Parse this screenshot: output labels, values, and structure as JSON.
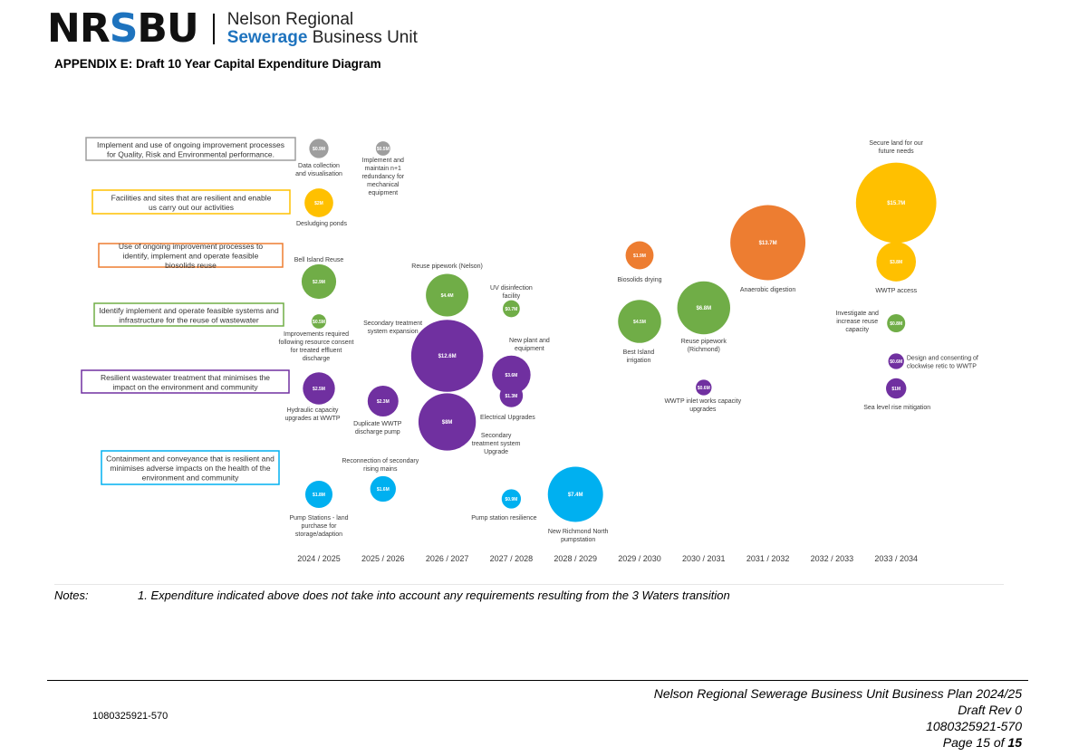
{
  "header": {
    "logo_mark": "NRSBU",
    "logo_line1": "Nelson Regional",
    "logo_line2a": "Sewerage",
    "logo_line2b": "Business Unit",
    "appendix_title": "APPENDIX E: Draft 10 Year Capital Expenditure Diagram"
  },
  "colors": {
    "grey": "#9e9e9e",
    "yellow": "#ffc000",
    "orange": "#ed7d31",
    "green": "#70ad47",
    "purple": "#7030a0",
    "blue": "#00b0f0"
  },
  "chart_data": {
    "type": "scatter",
    "x": [
      "2024 / 2025",
      "2025 / 2026",
      "2026 / 2027",
      "2027 / 2028",
      "2028 / 2029",
      "2029 / 2030",
      "2030 / 2031",
      "2031 / 2032",
      "2032 / 2033",
      "2033 / 2034"
    ],
    "grid": false,
    "legend": "left",
    "categories": [
      {
        "label": "Implement and use of ongoing improvement processes for Quality, Risk and Environmental performance.",
        "color": "grey"
      },
      {
        "label": "Facilities and sites that are resilient and enable us carry out our activities",
        "color": "yellow"
      },
      {
        "label": "Use of ongoing improvement processes to identify, implement and operate feasible biosolids reuse",
        "color": "orange"
      },
      {
        "label": "Identify implement and operate feasible systems and infrastructure for the reuse of wastewater",
        "color": "green"
      },
      {
        "label": "Resilient wastewater treatment that minimises the impact on the environment and community",
        "color": "purple"
      },
      {
        "label": "Containment and conveyance that is resilient and minimises adverse impacts on the health of the environment and community",
        "color": "blue"
      }
    ],
    "bubbles": [
      {
        "year": "2024 / 2025",
        "category": "grey",
        "value": 0.9,
        "amount": "$0.9M",
        "label": "Data collection and visualisation"
      },
      {
        "year": "2025 / 2026",
        "category": "grey",
        "value": 0.5,
        "amount": "$0.5M",
        "label": "Implement and maintain n+1 redundancy for mechanical equipment"
      },
      {
        "year": "2024 / 2025",
        "category": "yellow",
        "value": 2,
        "amount": "$2M",
        "label": "Desludging ponds"
      },
      {
        "year": "2033 / 2034",
        "category": "yellow",
        "value": 15.7,
        "amount": "$15.7M",
        "label": "Secure land for our future needs"
      },
      {
        "year": "2033 / 2034",
        "category": "yellow",
        "value": 3.8,
        "amount": "$3.8M",
        "label": "WWTP access"
      },
      {
        "year": "2029 / 2030",
        "category": "orange",
        "value": 1.9,
        "amount": "$1.9M",
        "label": "Biosolids drying"
      },
      {
        "year": "2031 / 2032",
        "category": "orange",
        "value": 13.7,
        "amount": "$13.7M",
        "label": "Anaerobic digestion"
      },
      {
        "year": "2024 / 2025",
        "category": "green",
        "value": 2.9,
        "amount": "$2.9M",
        "label": "Bell Island Reuse"
      },
      {
        "year": "2024 / 2025",
        "category": "green",
        "value": 0.5,
        "amount": "$0.5M",
        "label": "Improvements required following resource consent for treated effluent discharge"
      },
      {
        "year": "2026 / 2027",
        "category": "green",
        "value": 4.4,
        "amount": "$4.4M",
        "label": "Reuse pipework (Nelson)"
      },
      {
        "year": "2027 / 2028",
        "category": "green",
        "value": 0.7,
        "amount": "$0.7M",
        "label": "UV disinfection facility"
      },
      {
        "year": "2029 / 2030",
        "category": "green",
        "value": 4.5,
        "amount": "$4.5M",
        "label": "Best Island irrigation"
      },
      {
        "year": "2030 / 2031",
        "category": "green",
        "value": 6.8,
        "amount": "$6.8M",
        "label": "Reuse pipework (Richmond)"
      },
      {
        "year": "2033 / 2034",
        "category": "green",
        "value": 0.8,
        "amount": "$0.8M",
        "label": "Investigate and increase reuse capacity"
      },
      {
        "year": "2024 / 2025",
        "category": "purple",
        "value": 2.5,
        "amount": "$2.5M",
        "label": "Hydraulic capacity upgrades at WWTP"
      },
      {
        "year": "2025 / 2026",
        "category": "purple",
        "value": 2.3,
        "amount": "$2.3M",
        "label": "Duplicate WWTP discharge pump"
      },
      {
        "year": "2026 / 2027",
        "category": "purple",
        "value": 12.6,
        "amount": "$12.6M",
        "label": "Secondary treatment system expansion"
      },
      {
        "year": "2026 / 2027",
        "category": "purple",
        "value": 8,
        "amount": "$8M",
        "label": "Secondary treatment system Upgrade"
      },
      {
        "year": "2027 / 2028",
        "category": "purple",
        "value": 3.6,
        "amount": "$3.6M",
        "label": "New plant and equipment"
      },
      {
        "year": "2027 / 2028",
        "category": "purple",
        "value": 1.3,
        "amount": "$1.3M",
        "label": "Electrical Upgrades"
      },
      {
        "year": "2030 / 2031",
        "category": "purple",
        "value": 0.6,
        "amount": "$0.6M",
        "label": "WWTP inlet works capacity upgrades"
      },
      {
        "year": "2033 / 2034",
        "category": "purple",
        "value": 0.6,
        "amount": "$0.6M",
        "label": "Design and consenting of clockwise retic to WWTP"
      },
      {
        "year": "2033 / 2034",
        "category": "purple",
        "value": 1,
        "amount": "$1M",
        "label": "Sea level rise mitigation"
      },
      {
        "year": "2024 / 2025",
        "category": "blue",
        "value": 1.8,
        "amount": "$1.8M",
        "label": "Pump Stations - land purchase for storage/adaption"
      },
      {
        "year": "2025 / 2026",
        "category": "blue",
        "value": 1.6,
        "amount": "$1.6M",
        "label": "Reconnection of secondary rising mains"
      },
      {
        "year": "2027 / 2028",
        "category": "blue",
        "value": 0.9,
        "amount": "$0.9M",
        "label": "Pump station resilience"
      },
      {
        "year": "2028 / 2029",
        "category": "blue",
        "value": 7.4,
        "amount": "$7.4M",
        "label": "New Richmond North pumpstation"
      }
    ]
  },
  "notes": {
    "label": "Notes:",
    "text": "1. Expenditure indicated above does not take into account any requirements resulting from the 3 Waters transition"
  },
  "footer": {
    "doc_id": "1080325921-570",
    "line1": "Nelson Regional Sewerage Business Unit Business Plan 2024/25",
    "line2": "Draft Rev 0",
    "line3": "1080325921-570",
    "page_prefix": "Page",
    "page_num": "15",
    "page_of": "of",
    "page_total": "15"
  }
}
